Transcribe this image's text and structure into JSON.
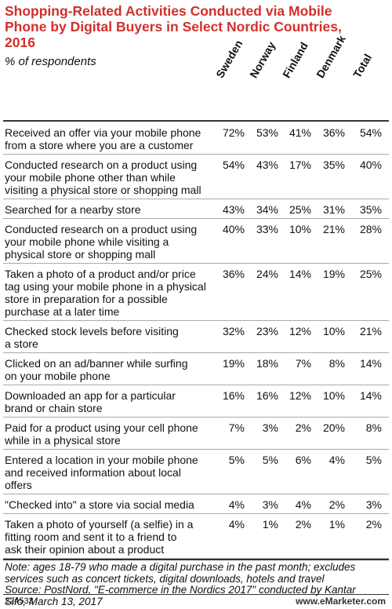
{
  "header": {
    "title": [
      "Shopping-Related Activities Conducted via Mobile",
      "Phone by Digital Buyers in Select Nordic Countries,",
      "2016"
    ],
    "subtitle": "% of respondents"
  },
  "table": {
    "columns": [
      "Sweden",
      "Norway",
      "Finland",
      "Denmark",
      "Total"
    ],
    "rows": [
      {
        "label": [
          "Received an offer via your mobile phone",
          "from a store where you are a customer"
        ],
        "cells": [
          "72%",
          "53%",
          "41%",
          "36%",
          "54%"
        ]
      },
      {
        "label": [
          "Conducted research on a product using",
          "your mobile phone other than while",
          "visiting a physical store or shopping mall"
        ],
        "cells": [
          "54%",
          "43%",
          "17%",
          "35%",
          "40%"
        ]
      },
      {
        "label": [
          "Searched for a nearby store"
        ],
        "cells": [
          "43%",
          "34%",
          "25%",
          "31%",
          "35%"
        ]
      },
      {
        "label": [
          "Conducted research on a product using",
          "your mobile phone while visiting a",
          "physical store or shopping mall"
        ],
        "cells": [
          "40%",
          "33%",
          "10%",
          "21%",
          "28%"
        ]
      },
      {
        "label": [
          "Taken a photo of a product and/or price",
          "tag using your mobile phone in a physical",
          "store in preparation for a possible",
          "purchase at a later time"
        ],
        "cells": [
          "36%",
          "24%",
          "14%",
          "19%",
          "25%"
        ]
      },
      {
        "label": [
          "Checked stock levels before visiting",
          "a store"
        ],
        "cells": [
          "32%",
          "23%",
          "12%",
          "10%",
          "21%"
        ]
      },
      {
        "label": [
          "Clicked on an ad/banner while surfing",
          "on your mobile phone"
        ],
        "cells": [
          "19%",
          "18%",
          "7%",
          "8%",
          "14%"
        ]
      },
      {
        "label": [
          "Downloaded an app for a particular",
          "brand or chain store"
        ],
        "cells": [
          "16%",
          "16%",
          "12%",
          "10%",
          "14%"
        ]
      },
      {
        "label": [
          "Paid for a product using your cell phone",
          "while in a physical store"
        ],
        "cells": [
          "7%",
          "3%",
          "2%",
          "20%",
          "8%"
        ]
      },
      {
        "label": [
          "Entered a location in your mobile phone",
          "and received information about local",
          "offers"
        ],
        "cells": [
          "5%",
          "5%",
          "6%",
          "4%",
          "5%"
        ]
      },
      {
        "label": [
          "\"Checked into\" a store via social media"
        ],
        "cells": [
          "4%",
          "3%",
          "4%",
          "2%",
          "3%"
        ]
      },
      {
        "label": [
          "Taken a photo of yourself (a selfie) in a",
          "fitting room and sent it to a friend to",
          "ask their opinion about a product"
        ],
        "cells": [
          "4%",
          "1%",
          "2%",
          "1%",
          "2%"
        ]
      }
    ]
  },
  "notes": [
    "Note: ages 18-79 who made a digital purchase in the past month; excludes",
    "services such as concert tickets, digital downloads, hotels and travel",
    "Source: PostNord, \"E-commerce in the Nordics 2017\" conducted by Kantar",
    "Sifo, March 13, 2017"
  ],
  "footer": {
    "id": "224533",
    "brand": "www.eMarketer.com"
  }
}
